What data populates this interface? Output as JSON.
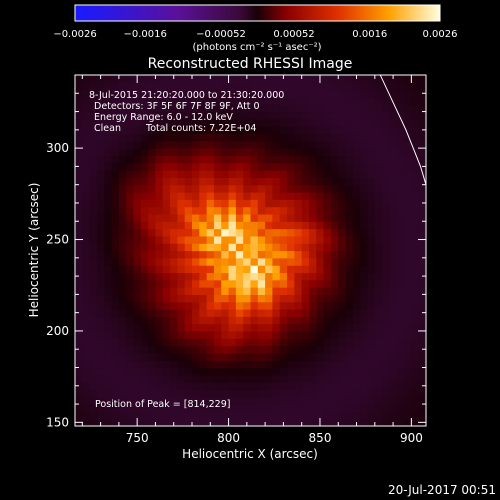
{
  "chart_data": {
    "type": "heatmap",
    "title": "Reconstructed RHESSI Image",
    "xlabel": "Heliocentric X (arcsec)",
    "ylabel": "Heliocentric Y (arcsec)",
    "xlim": [
      716,
      908
    ],
    "ylim": [
      148,
      340
    ],
    "xticks": [
      750,
      800,
      850,
      900
    ],
    "yticks": [
      150,
      200,
      250,
      300
    ],
    "colorbar": {
      "label": "(photons cm⁻² s⁻¹ asec⁻²)",
      "range": [
        -0.0026,
        0.0026
      ],
      "tick_values": [
        -0.0026,
        -0.0016,
        -0.00052,
        0.00052,
        0.0016,
        0.0026
      ],
      "tick_labels": [
        "−0.0026",
        "−0.0016",
        "−0.00052",
        "0.00052",
        "0.0016",
        "0.0026"
      ]
    },
    "annotations": {
      "time_range": "8-Jul-2015 21:20:20.000 to 21:30:20.000",
      "detectors": "Detectors: 3F 5F 6F 7F 8F 9F, Att 0",
      "energy_range": "Energy Range: 6.0 - 12.0 keV",
      "clean_label": "Clean",
      "total_counts": "Total counts: 7.22E+04",
      "peak_position": "Position of Peak = [814,229]"
    },
    "peak": {
      "x": 814,
      "y": 229,
      "value": 0.0026
    },
    "limb": [
      [
        883,
        340
      ],
      [
        890,
        325
      ],
      [
        897,
        310
      ],
      [
        901,
        300
      ],
      [
        905,
        290
      ],
      [
        908,
        280
      ]
    ],
    "sources": [
      {
        "x": 805,
        "y": 245,
        "sx": 28,
        "sy": 26,
        "amp": 0.0015
      },
      {
        "x": 814,
        "y": 228,
        "sx": 13,
        "sy": 11,
        "amp": 0.001
      },
      {
        "x": 797,
        "y": 256,
        "sx": 12,
        "sy": 10,
        "amp": 0.0007
      },
      {
        "x": 838,
        "y": 247,
        "sx": 10,
        "sy": 10,
        "amp": 0.00045
      },
      {
        "x": 770,
        "y": 275,
        "sx": 20,
        "sy": 18,
        "amp": 0.0004
      },
      {
        "x": 800,
        "y": 205,
        "sx": 18,
        "sy": 14,
        "amp": 0.0003
      }
    ],
    "footer_timestamp": "20-Jul-2017 00:51"
  }
}
